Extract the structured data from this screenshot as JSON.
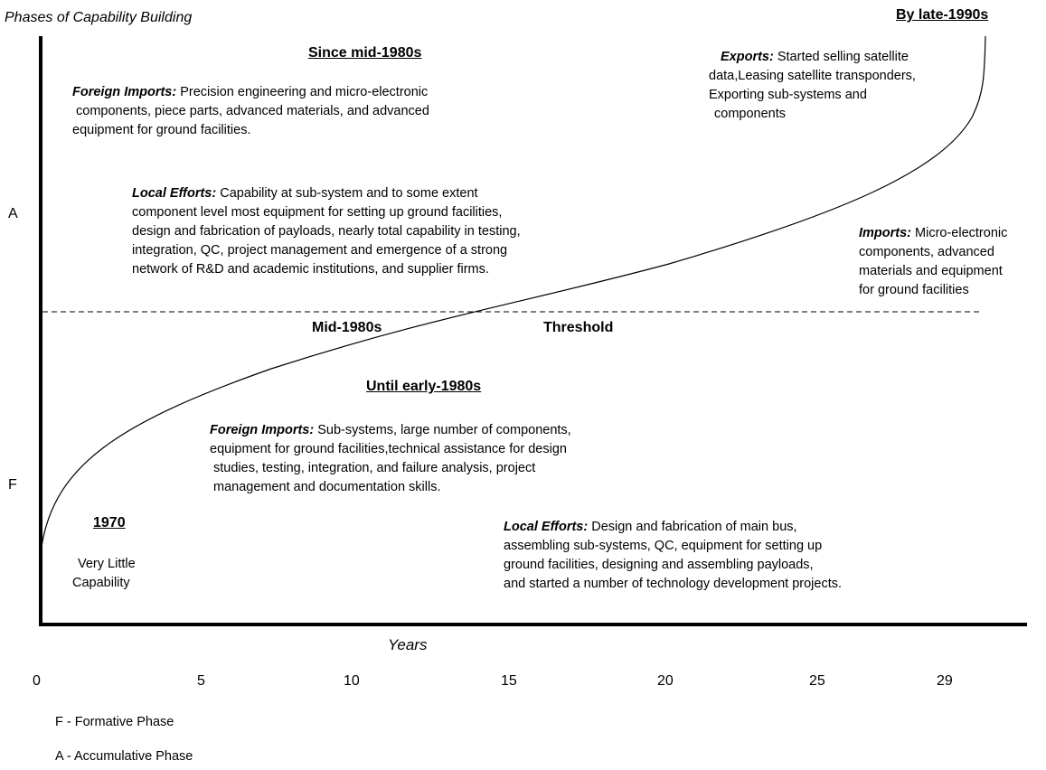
{
  "title": "Phases of Capability Building",
  "top_right": "By late-1990s",
  "axis": {
    "y_label_a": "A",
    "y_label_f": "F",
    "x_label": "Years",
    "ticks": [
      "0",
      "5",
      "10",
      "15",
      "20",
      "25",
      "29"
    ]
  },
  "threshold_line": {
    "left_label": "Mid-1980s",
    "right_label": "Threshold"
  },
  "phase_a": {
    "heading": "Since mid-1980s",
    "foreign_imports": {
      "label": "Foreign Imports:",
      "line1": " Precision engineering and micro-electronic",
      "line2": "components, piece parts, advanced materials, and advanced",
      "line3": "equipment for ground facilities."
    },
    "local_efforts": {
      "label": "Local Efforts:",
      "line1": " Capability at sub-system and to some extent",
      "line2": "component level most equipment for setting up ground facilities,",
      "line3": "design and fabrication of payloads, nearly total capability in testing,",
      "line4": "integration, QC, project management and emergence of a strong",
      "line5": "network of R&D and academic institutions, and supplier firms."
    }
  },
  "late_1990s": {
    "exports": {
      "label": "Exports:",
      "line1": " Started selling satellite",
      "line2": "data,Leasing satellite transponders,",
      "line3": "Exporting sub-systems and",
      "line4": "components"
    },
    "imports": {
      "label": "Imports:",
      "line1": " Micro-electronic",
      "line2": "components, advanced",
      "line3": "materials and equipment",
      "line4": "for ground facilities"
    }
  },
  "phase_f": {
    "heading": "Until early-1980s",
    "foreign_imports": {
      "label": "Foreign Imports:",
      "line1": " Sub-systems, large number of components,",
      "line2": "equipment for ground facilities,technical assistance for design",
      "line3": "studies, testing, integration, and failure analysis, project",
      "line4": "management and documentation skills."
    },
    "local_efforts": {
      "label": "Local Efforts:",
      "line1": " Design and fabrication of main bus,",
      "line2": "assembling sub-systems, QC, equipment for setting up",
      "line3": "ground facilities, designing and assembling payloads,",
      "line4": "and started a number of technology development projects."
    }
  },
  "start": {
    "year": "1970",
    "line1": "Very Little",
    "line2": "Capability"
  },
  "legend": {
    "f": "F - Formative Phase",
    "a": "A - Accumulative Phase"
  }
}
